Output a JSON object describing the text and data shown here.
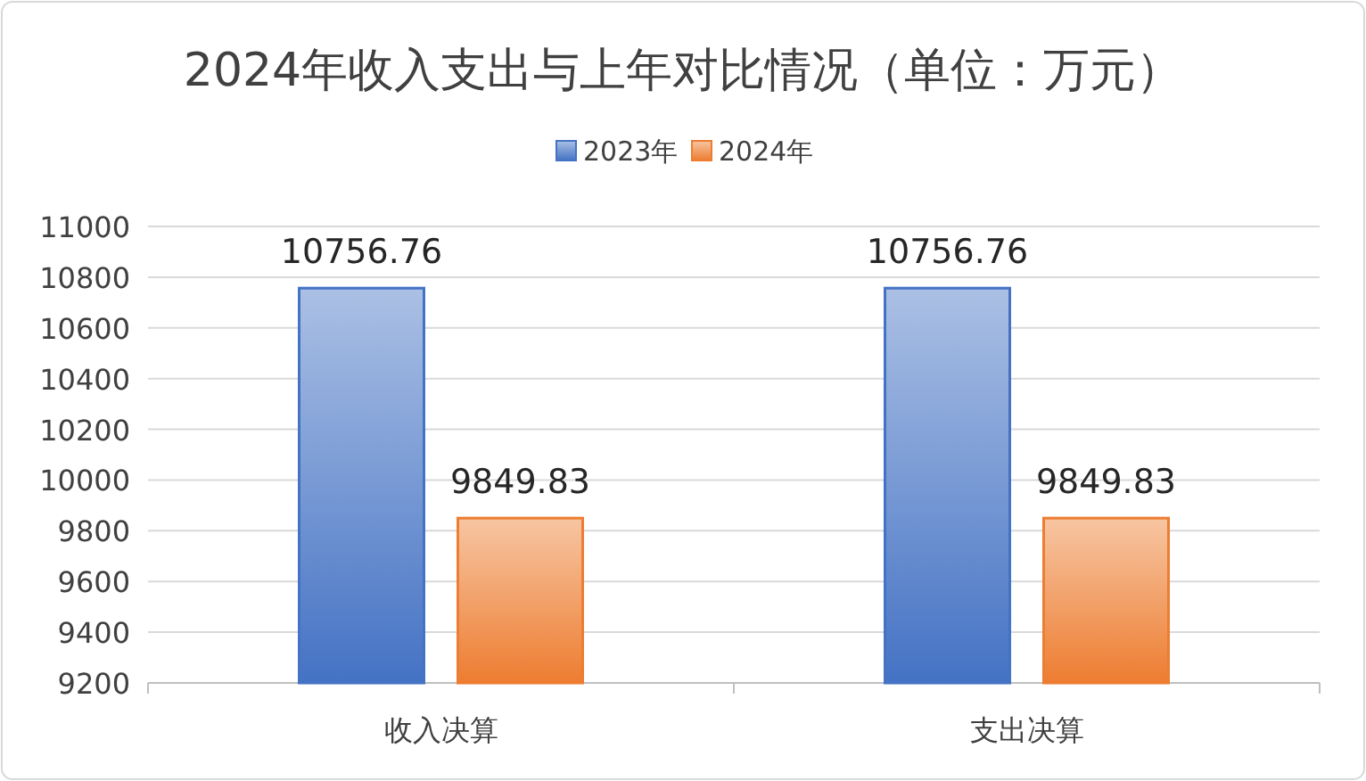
{
  "chart_data": {
    "type": "bar",
    "title": "2024年收入支出与上年对比情况（单位：万元）",
    "categories": [
      "收入决算",
      "支出决算"
    ],
    "series": [
      {
        "name": "2023年",
        "color": "#4472c4",
        "values": [
          10756.76,
          10756.76
        ]
      },
      {
        "name": "2024年",
        "color": "#ed7d31",
        "values": [
          9849.83,
          9849.83
        ]
      }
    ],
    "ylim": [
      9200,
      11000
    ],
    "yticks": [
      9200,
      9400,
      9600,
      9800,
      10000,
      10200,
      10400,
      10600,
      10800,
      11000
    ],
    "grid": "y",
    "legend": "top",
    "data_labels": true
  }
}
